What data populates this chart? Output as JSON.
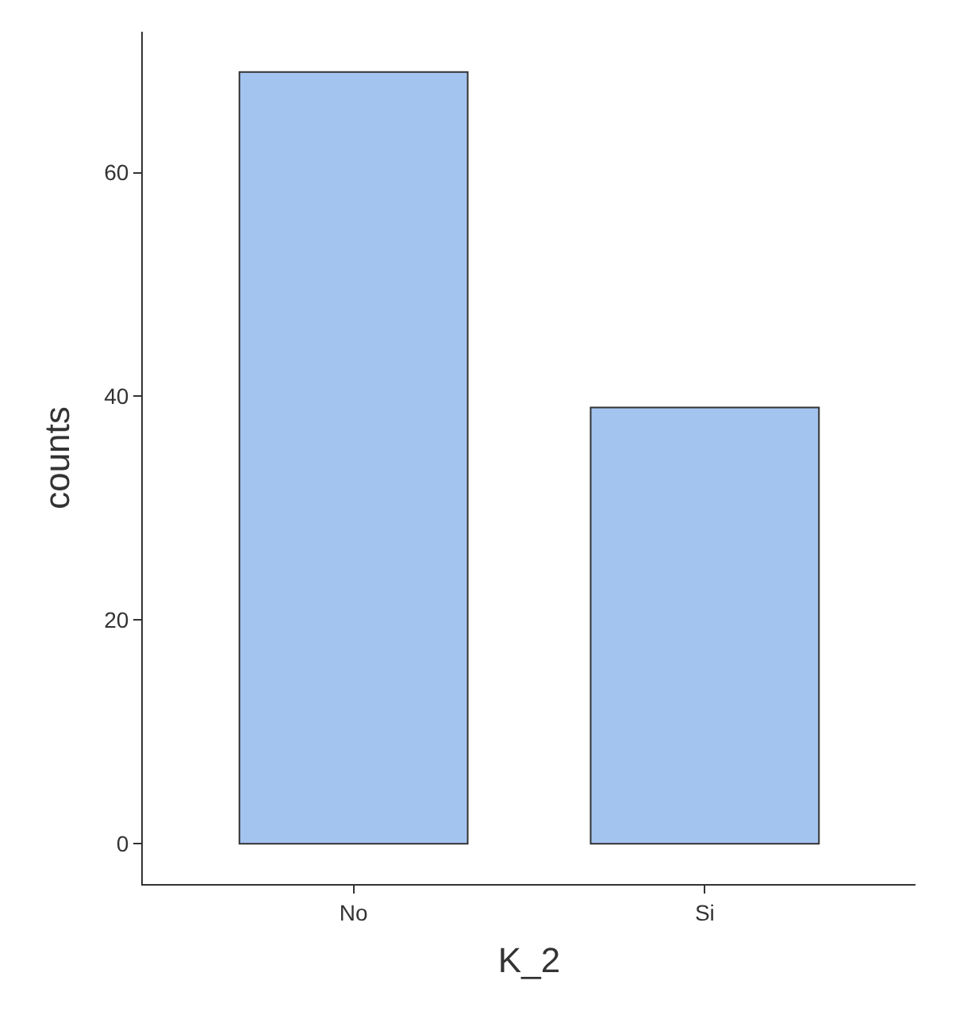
{
  "chart_data": {
    "type": "bar",
    "xlabel": "K_2",
    "ylabel": "counts",
    "categories": [
      "No",
      "Si"
    ],
    "values": [
      69,
      39
    ],
    "color": "#a4c4f0",
    "ylim": [
      -3.6,
      72.6
    ],
    "yticks": [
      0,
      20,
      40,
      60
    ],
    "legend": false
  }
}
